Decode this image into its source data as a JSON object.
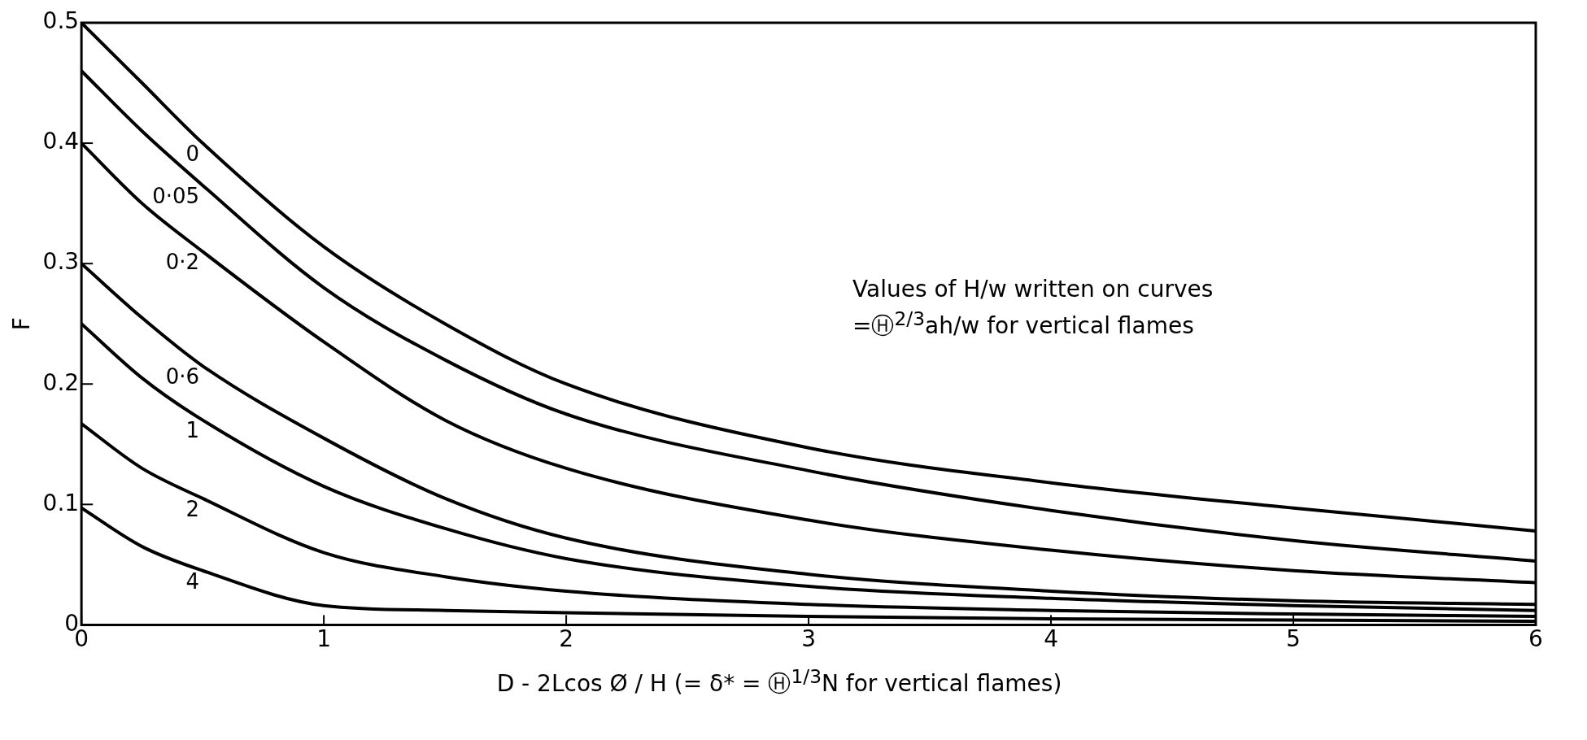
{
  "chart_data": {
    "type": "line",
    "xlabel": "D - 2Lcos Ø / H   (= δ* = Ⓗ$^{1/3}$N for vertical flames)",
    "ylabel": "F",
    "x": [
      0,
      0.25,
      0.5,
      1,
      1.5,
      2,
      3,
      4,
      5,
      6
    ],
    "series": [
      {
        "name": "0",
        "color": "#000000",
        "values": [
          0.5,
          0.45,
          0.4,
          0.314,
          0.25,
          0.2,
          0.147,
          0.118,
          0.097,
          0.078
        ]
      },
      {
        "name": "0·05",
        "color": "#000000",
        "values": [
          0.46,
          0.41,
          0.365,
          0.28,
          0.22,
          0.175,
          0.128,
          0.095,
          0.07,
          0.053
        ]
      },
      {
        "name": "0·2",
        "color": "#000000",
        "values": [
          0.4,
          0.35,
          0.31,
          0.235,
          0.17,
          0.13,
          0.087,
          0.062,
          0.045,
          0.035
        ]
      },
      {
        "name": "0·6",
        "color": "#000000",
        "values": [
          0.3,
          0.255,
          0.215,
          0.155,
          0.105,
          0.072,
          0.042,
          0.028,
          0.02,
          0.017
        ]
      },
      {
        "name": "1",
        "color": "#000000",
        "values": [
          0.25,
          0.205,
          0.17,
          0.115,
          0.08,
          0.055,
          0.032,
          0.022,
          0.016,
          0.012
        ]
      },
      {
        "name": "2",
        "color": "#000000",
        "values": [
          0.167,
          0.13,
          0.105,
          0.06,
          0.04,
          0.028,
          0.017,
          0.012,
          0.009,
          0.007
        ]
      },
      {
        "name": "4",
        "color": "#000000",
        "values": [
          0.097,
          0.065,
          0.045,
          0.016,
          0.012,
          0.01,
          0.007,
          0.005,
          0.004,
          0.003
        ]
      }
    ],
    "xlim": [
      0,
      6
    ],
    "xticks": [
      0,
      1,
      2,
      3,
      4,
      5,
      6
    ],
    "ylim": [
      0,
      0.5
    ],
    "yticks": [
      0,
      0.1,
      0.2,
      0.3,
      0.4,
      0.5
    ],
    "grid": false,
    "legend": false,
    "marker": "none",
    "line_style": "solid",
    "annotations": [
      "Values of H/w written on curves",
      "=Ⓗ$^{2/3}$ah/w for vertical flames"
    ]
  }
}
